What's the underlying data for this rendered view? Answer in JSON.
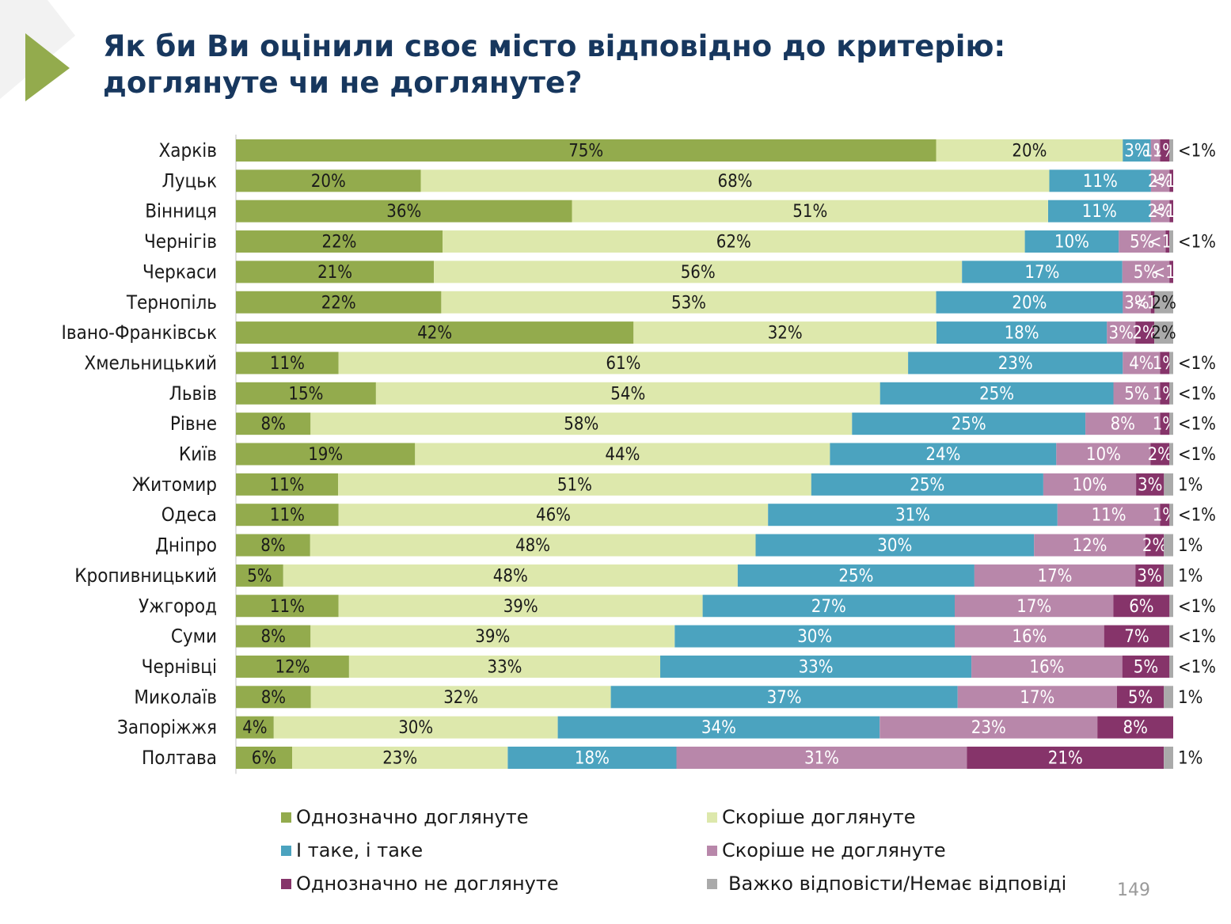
{
  "title": {
    "line1": "Як би Ви оцінили своє місто відповідно до критерію:",
    "line2": "доглянуте чи не доглянуте?"
  },
  "page_number": "149",
  "colors": {
    "title": "#17375e",
    "series": [
      "#93ab4d",
      "#dde8ac",
      "#4ba3bf",
      "#b887aa",
      "#86346a",
      "#aaaaaa"
    ]
  },
  "chart_data": {
    "type": "bar",
    "orientation": "horizontal",
    "stacked": true,
    "unit": "%",
    "categories": [
      "Харків",
      "Луцьк",
      "Вінниця",
      "Чернігів",
      "Черкаси",
      "Тернопіль",
      "Івано-Франківськ",
      "Хмельницький",
      "Львів",
      "Рівне",
      "Київ",
      "Житомир",
      "Одеса",
      "Дніпро",
      "Кропивницький",
      "Ужгород",
      "Суми",
      "Чернівці",
      "Миколаїв",
      "Запоріжжя",
      "Полтава"
    ],
    "series": [
      {
        "name": "Однозначно доглянуте",
        "color": "#93ab4d",
        "text_color": "#1a1a1a",
        "values": [
          75,
          20,
          36,
          22,
          21,
          22,
          42,
          11,
          15,
          8,
          19,
          11,
          11,
          8,
          5,
          11,
          8,
          12,
          8,
          4,
          6
        ],
        "labels": [
          "75%",
          "20%",
          "36%",
          "22%",
          "21%",
          "22%",
          "42%",
          "11%",
          "15%",
          "8%",
          "19%",
          "11%",
          "11%",
          "8%",
          "5%",
          "11%",
          "8%",
          "12%",
          "8%",
          "4%",
          "6%"
        ]
      },
      {
        "name": "Скоріше доглянуте",
        "color": "#dde8ac",
        "text_color": "#1a1a1a",
        "values": [
          20,
          68,
          51,
          62,
          56,
          53,
          32,
          61,
          54,
          58,
          44,
          51,
          46,
          48,
          48,
          39,
          39,
          33,
          32,
          30,
          23
        ],
        "labels": [
          "20%",
          "68%",
          "51%",
          "62%",
          "56%",
          "53%",
          "32%",
          "61%",
          "54%",
          "58%",
          "44%",
          "51%",
          "46%",
          "48%",
          "48%",
          "39%",
          "39%",
          "33%",
          "32%",
          "30%",
          "23%"
        ]
      },
      {
        "name": "І таке, і таке",
        "color": "#4ba3bf",
        "text_color": "#ffffff",
        "values": [
          3,
          11,
          11,
          10,
          17,
          20,
          18,
          23,
          25,
          25,
          24,
          25,
          31,
          30,
          25,
          27,
          30,
          33,
          37,
          34,
          18
        ],
        "labels": [
          "3%",
          "11%",
          "11%",
          "10%",
          "17%",
          "20%",
          "18%",
          "23%",
          "25%",
          "25%",
          "24%",
          "25%",
          "31%",
          "30%",
          "25%",
          "27%",
          "30%",
          "33%",
          "37%",
          "34%",
          "18%"
        ]
      },
      {
        "name": "Скоріше не доглянуте",
        "color": "#b887aa",
        "text_color": "#ffffff",
        "values": [
          1,
          2,
          2,
          5,
          5,
          3,
          3,
          4,
          5,
          8,
          10,
          10,
          11,
          12,
          17,
          17,
          16,
          16,
          17,
          23,
          31
        ],
        "labels": [
          "1%",
          "2%",
          "2%",
          "5%",
          "5%",
          "3%",
          "3%",
          "4%",
          "5%",
          "8%",
          "10%",
          "10%",
          "11%",
          "12%",
          "17%",
          "17%",
          "16%",
          "16%",
          "17%",
          "23%",
          "31%"
        ]
      },
      {
        "name": "Однозначно не доглянуте",
        "color": "#86346a",
        "text_color": "#ffffff",
        "values": [
          1,
          0.4,
          0.4,
          0.4,
          0.4,
          0.4,
          2,
          1,
          1,
          1,
          2,
          3,
          1,
          2,
          3,
          6,
          7,
          5,
          5,
          8,
          21
        ],
        "labels": [
          "1%",
          "<1%",
          "<1%",
          "<1%",
          "<1%",
          "<1%",
          "2%",
          "1%",
          "1%",
          "1%",
          "2%",
          "3%",
          "1%",
          "2%",
          "3%",
          "6%",
          "7%",
          "5%",
          "5%",
          "8%",
          "21%"
        ]
      },
      {
        "name": "Важко відповісти/Немає відповіді",
        "color": "#aaaaaa",
        "text_color": "#1a1a1a",
        "values": [
          0.4,
          0,
          0,
          0.4,
          0,
          2,
          2,
          0.4,
          0.4,
          0.4,
          0.4,
          1,
          0.4,
          1,
          1,
          0.4,
          0.4,
          0.4,
          1,
          0,
          1
        ],
        "labels": [
          "<1%",
          "",
          "",
          "<1%",
          "",
          "2%",
          "2%",
          "<1%",
          "<1%",
          "<1%",
          "<1%",
          "1%",
          "<1%",
          "1%",
          "1%",
          "<1%",
          "<1%",
          "<1%",
          "1%",
          "",
          "1%"
        ]
      }
    ],
    "xlim": [
      0,
      100
    ],
    "legend_position": "bottom",
    "grid": false
  }
}
